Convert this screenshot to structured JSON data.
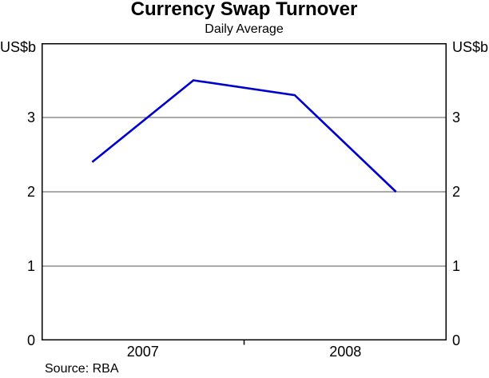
{
  "page": {
    "background": "#ffffff"
  },
  "chart_data": {
    "type": "line",
    "title": "Currency Swap Turnover",
    "subtitle": "Daily Average",
    "unit_label_left": "US$b",
    "unit_label_right": "US$b",
    "source": "Source: RBA",
    "ylim": [
      0,
      4
    ],
    "yticks": [
      0,
      1,
      2,
      3
    ],
    "ytick_labels_on_both_sides": true,
    "grid": true,
    "grid_color": "#555555",
    "axis_color": "#000000",
    "legend": false,
    "x_axis_labels": [
      {
        "label": "2007",
        "center_fraction": 0.25
      },
      {
        "label": "2008",
        "center_fraction": 0.75
      }
    ],
    "x_boundary_tick_fractions": [
      0.5
    ],
    "series": [
      {
        "name": "currency-swap-turnover",
        "color": "#0000cd",
        "line_width": 2.6,
        "x_fractions": [
          0.125,
          0.375,
          0.625,
          0.875
        ],
        "values": [
          2.4,
          3.5,
          3.3,
          2.0
        ]
      }
    ]
  }
}
